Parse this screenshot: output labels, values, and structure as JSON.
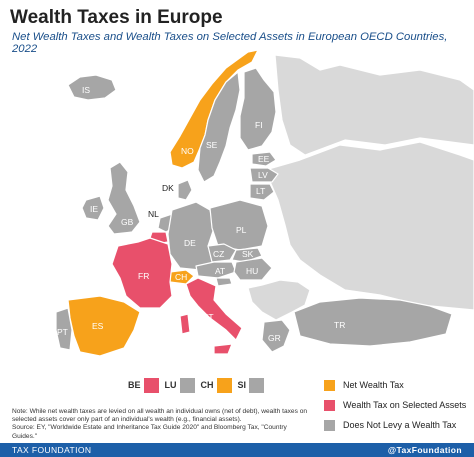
{
  "title": "Wealth Taxes in Europe",
  "subtitle": "Net Wealth Taxes and Wealth Taxes on Selected Assets in European OECD Countries, 2022",
  "colors": {
    "net_wealth_tax": "#f7a21b",
    "selected_assets": "#e8506b",
    "none": "#a6a6a6",
    "non_oecd": "#d9d9d9"
  },
  "countries": {
    "IS": "IS",
    "NO": "NO",
    "SE": "SE",
    "FI": "FI",
    "EE": "EE",
    "LV": "LV",
    "LT": "LT",
    "DK": "DK",
    "IE": "IE",
    "GB": "GB",
    "NL": "NL",
    "DE": "DE",
    "PL": "PL",
    "CZ": "CZ",
    "SK": "SK",
    "AT": "AT",
    "HU": "HU",
    "FR": "FR",
    "CH": "CH",
    "IT": "IT",
    "ES": "ES",
    "PT": "PT",
    "TR": "TR",
    "GR": "GR"
  },
  "small_states": [
    {
      "code": "BE",
      "category": "selected_assets"
    },
    {
      "code": "LU",
      "category": "none"
    },
    {
      "code": "CH",
      "category": "net_wealth_tax"
    },
    {
      "code": "SI",
      "category": "none"
    }
  ],
  "legend": [
    {
      "label": "Net Wealth Tax",
      "category": "net_wealth_tax"
    },
    {
      "label": "Wealth Tax on Selected Assets",
      "category": "selected_assets"
    },
    {
      "label": "Does Not Levy a Wealth Tax",
      "category": "none"
    }
  ],
  "note": "Note: While net wealth taxes are levied on all wealth an individual owns (net of debt), wealth taxes on selected assets cover only part of an individual's wealth (e.g., financial assets).",
  "source": "Source: EY, \"Worldwide Estate and Inheritance Tax Guide 2020\" and Bloomberg Tax, \"Country Guides.\"",
  "footer": {
    "left": "TAX FOUNDATION",
    "right": "@TaxFoundation"
  }
}
